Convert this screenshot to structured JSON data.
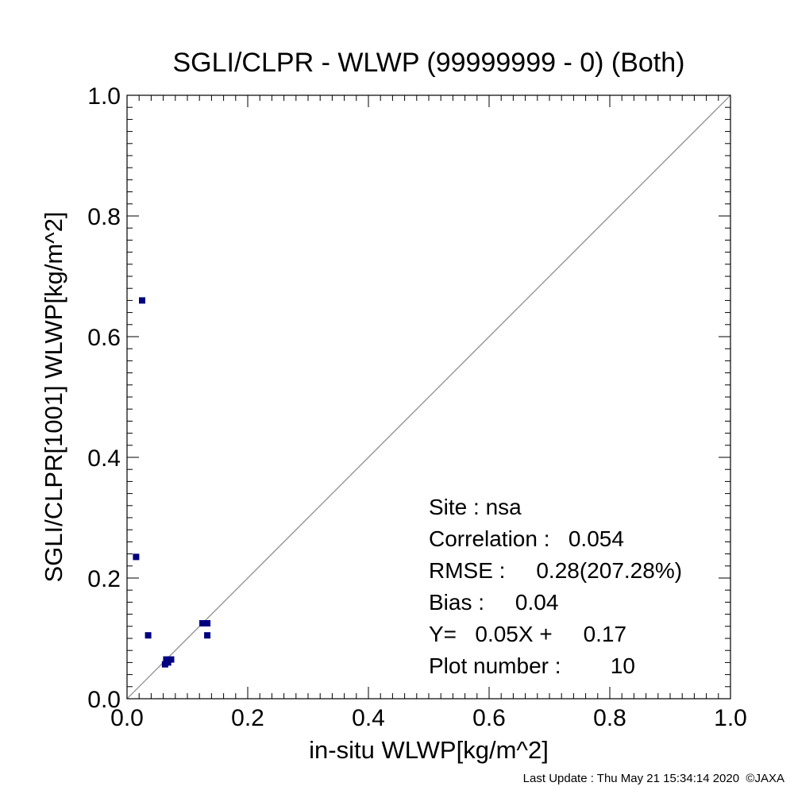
{
  "chart_data": {
    "type": "scatter",
    "title": "SGLI/CLPR - WLWP (99999999 - 0) (Both)",
    "xlabel": "in-situ WLWP[kg/m^2]",
    "ylabel": "SGLI/CLPR[1001]    WLWP[kg/m^2]",
    "xlim": [
      0.0,
      1.0
    ],
    "ylim": [
      0.0,
      1.0
    ],
    "xticks": [
      "0.0",
      "0.2",
      "0.4",
      "0.6",
      "0.8",
      "1.0"
    ],
    "yticks": [
      "0.0",
      "0.2",
      "0.4",
      "0.6",
      "0.8",
      "1.0"
    ],
    "grid": false,
    "reference_line": "1:1",
    "marker_color": "#000080",
    "points": [
      {
        "x": 0.025,
        "y": 0.66
      },
      {
        "x": 0.015,
        "y": 0.235
      },
      {
        "x": 0.035,
        "y": 0.105
      },
      {
        "x": 0.063,
        "y": 0.057
      },
      {
        "x": 0.065,
        "y": 0.065
      },
      {
        "x": 0.073,
        "y": 0.065
      },
      {
        "x": 0.125,
        "y": 0.125
      },
      {
        "x": 0.133,
        "y": 0.125
      },
      {
        "x": 0.133,
        "y": 0.105
      },
      {
        "x": 0.068,
        "y": 0.06
      }
    ],
    "stats": {
      "site": "Site : nsa",
      "correlation": "Correlation :   0.054",
      "rmse": "RMSE :     0.28(207.28%)",
      "bias": "Bias :     0.04",
      "regression": "Y=   0.05X +     0.17",
      "plot_number": "Plot number :        10"
    }
  },
  "footer": {
    "last_update": "Last Update : Thu May 21 15:34:14 2020  ©JAXA"
  }
}
